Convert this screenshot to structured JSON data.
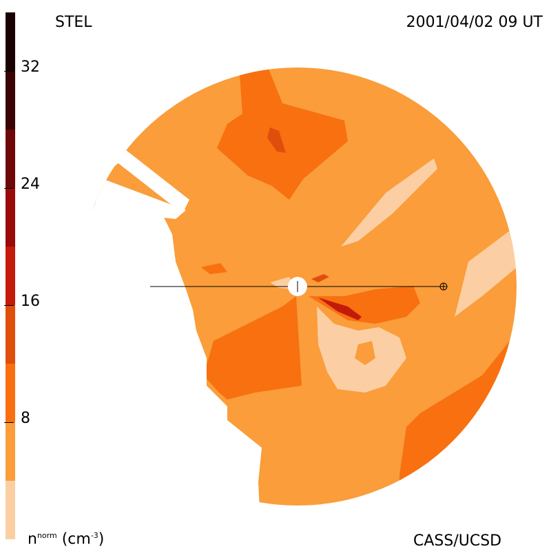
{
  "header": {
    "instrument": "STEL",
    "timestamp": "2001/04/02 09 UT"
  },
  "footer": {
    "credit": "CASS/UCSD",
    "units_base": "n",
    "units_sup": "norm",
    "units_rest_open": " (cm",
    "units_exp": "-3",
    "units_close": ")"
  },
  "colorbar": {
    "ticks": [
      {
        "label": "32",
        "value": 32
      },
      {
        "label": "24",
        "value": 24
      },
      {
        "label": "16",
        "value": 16
      },
      {
        "label": "8",
        "value": 8
      }
    ],
    "levels": [
      {
        "from": 0,
        "to": 4,
        "color": "#fbcfa3"
      },
      {
        "from": 4,
        "to": 8,
        "color": "#fa9d3a"
      },
      {
        "from": 8,
        "to": 12,
        "color": "#f87010"
      },
      {
        "from": 12,
        "to": 16,
        "color": "#e04e0c"
      },
      {
        "from": 16,
        "to": 20,
        "color": "#c41a0a"
      },
      {
        "from": 20,
        "to": 24,
        "color": "#9b0a0a"
      },
      {
        "from": 24,
        "to": 28,
        "color": "#6e0808"
      },
      {
        "from": 28,
        "to": 32,
        "color": "#3a0404"
      },
      {
        "from": 32,
        "to": 36,
        "color": "#1a0202"
      }
    ],
    "range": [
      0,
      36
    ]
  },
  "chart_data": {
    "type": "heatmap",
    "title": "",
    "variable": "normalized density",
    "colorscale_range": [
      0,
      36
    ],
    "palette": {
      "level_0_4": "#fbcfa3",
      "level_4_8": "#fa9d3a",
      "level_8_12": "#f87010",
      "level_12_16": "#e04e0c",
      "level_16_20": "#c41a0a"
    },
    "view": "polar ecliptic cut, Sun at center, Earth on horizontal line"
  }
}
